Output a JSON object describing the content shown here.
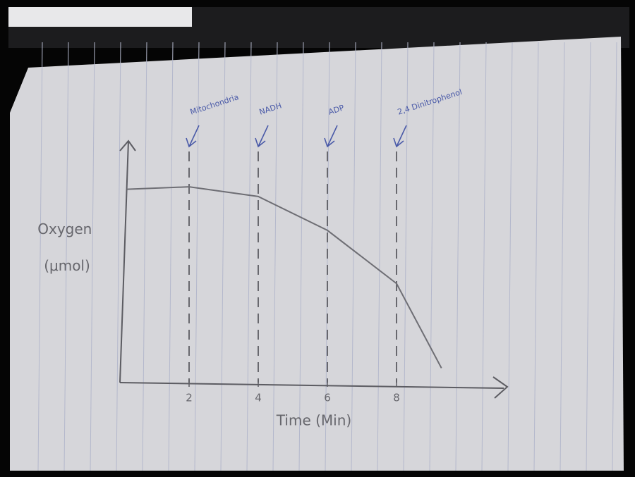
{
  "chart_data": {
    "type": "line",
    "xlabel": "Time (Min)",
    "ylabel": "Oxygen (μmol)",
    "x": [
      0.2,
      2,
      4,
      6,
      8,
      9.3
    ],
    "values": [
      8.0,
      8.1,
      7.7,
      6.3,
      4.1,
      0.6
    ],
    "color": "#6e6e74",
    "xlim": [
      0,
      11
    ],
    "ylim": [
      0,
      10
    ],
    "xticks": [
      2,
      4,
      6,
      8
    ],
    "annotations": [
      {
        "x": 2,
        "text": "Mitochondria"
      },
      {
        "x": 4,
        "text": "NADH"
      },
      {
        "x": 6,
        "text": "ADP"
      },
      {
        "x": 8,
        "text": "2,4 Dinitrophenol"
      }
    ],
    "annotation_color": "#4a5aa8"
  }
}
